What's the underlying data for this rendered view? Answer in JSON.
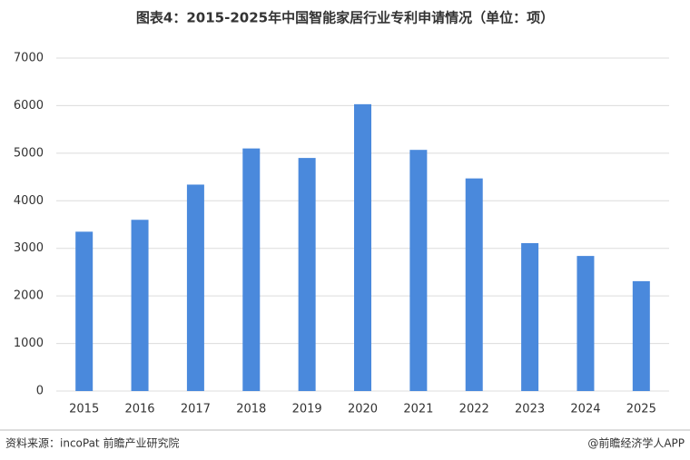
{
  "chart_data": {
    "type": "bar",
    "title": "图表4：2015-2025年中国智能家居行业专利申请情况（单位：项）",
    "categories": [
      "2015",
      "2016",
      "2017",
      "2018",
      "2019",
      "2020",
      "2021",
      "2022",
      "2023",
      "2024",
      "2025"
    ],
    "values": [
      3350,
      3600,
      4340,
      5100,
      4900,
      6030,
      5070,
      4470,
      3110,
      2840,
      2310
    ],
    "color": "#4a89dc",
    "ylim": [
      0,
      7000
    ],
    "yticks": [
      0,
      1000,
      2000,
      3000,
      4000,
      5000,
      6000,
      7000
    ],
    "grid": true,
    "source": "资料来源：incoPat 前瞻产业研究院",
    "credit": "@前瞻经济学人APP"
  }
}
